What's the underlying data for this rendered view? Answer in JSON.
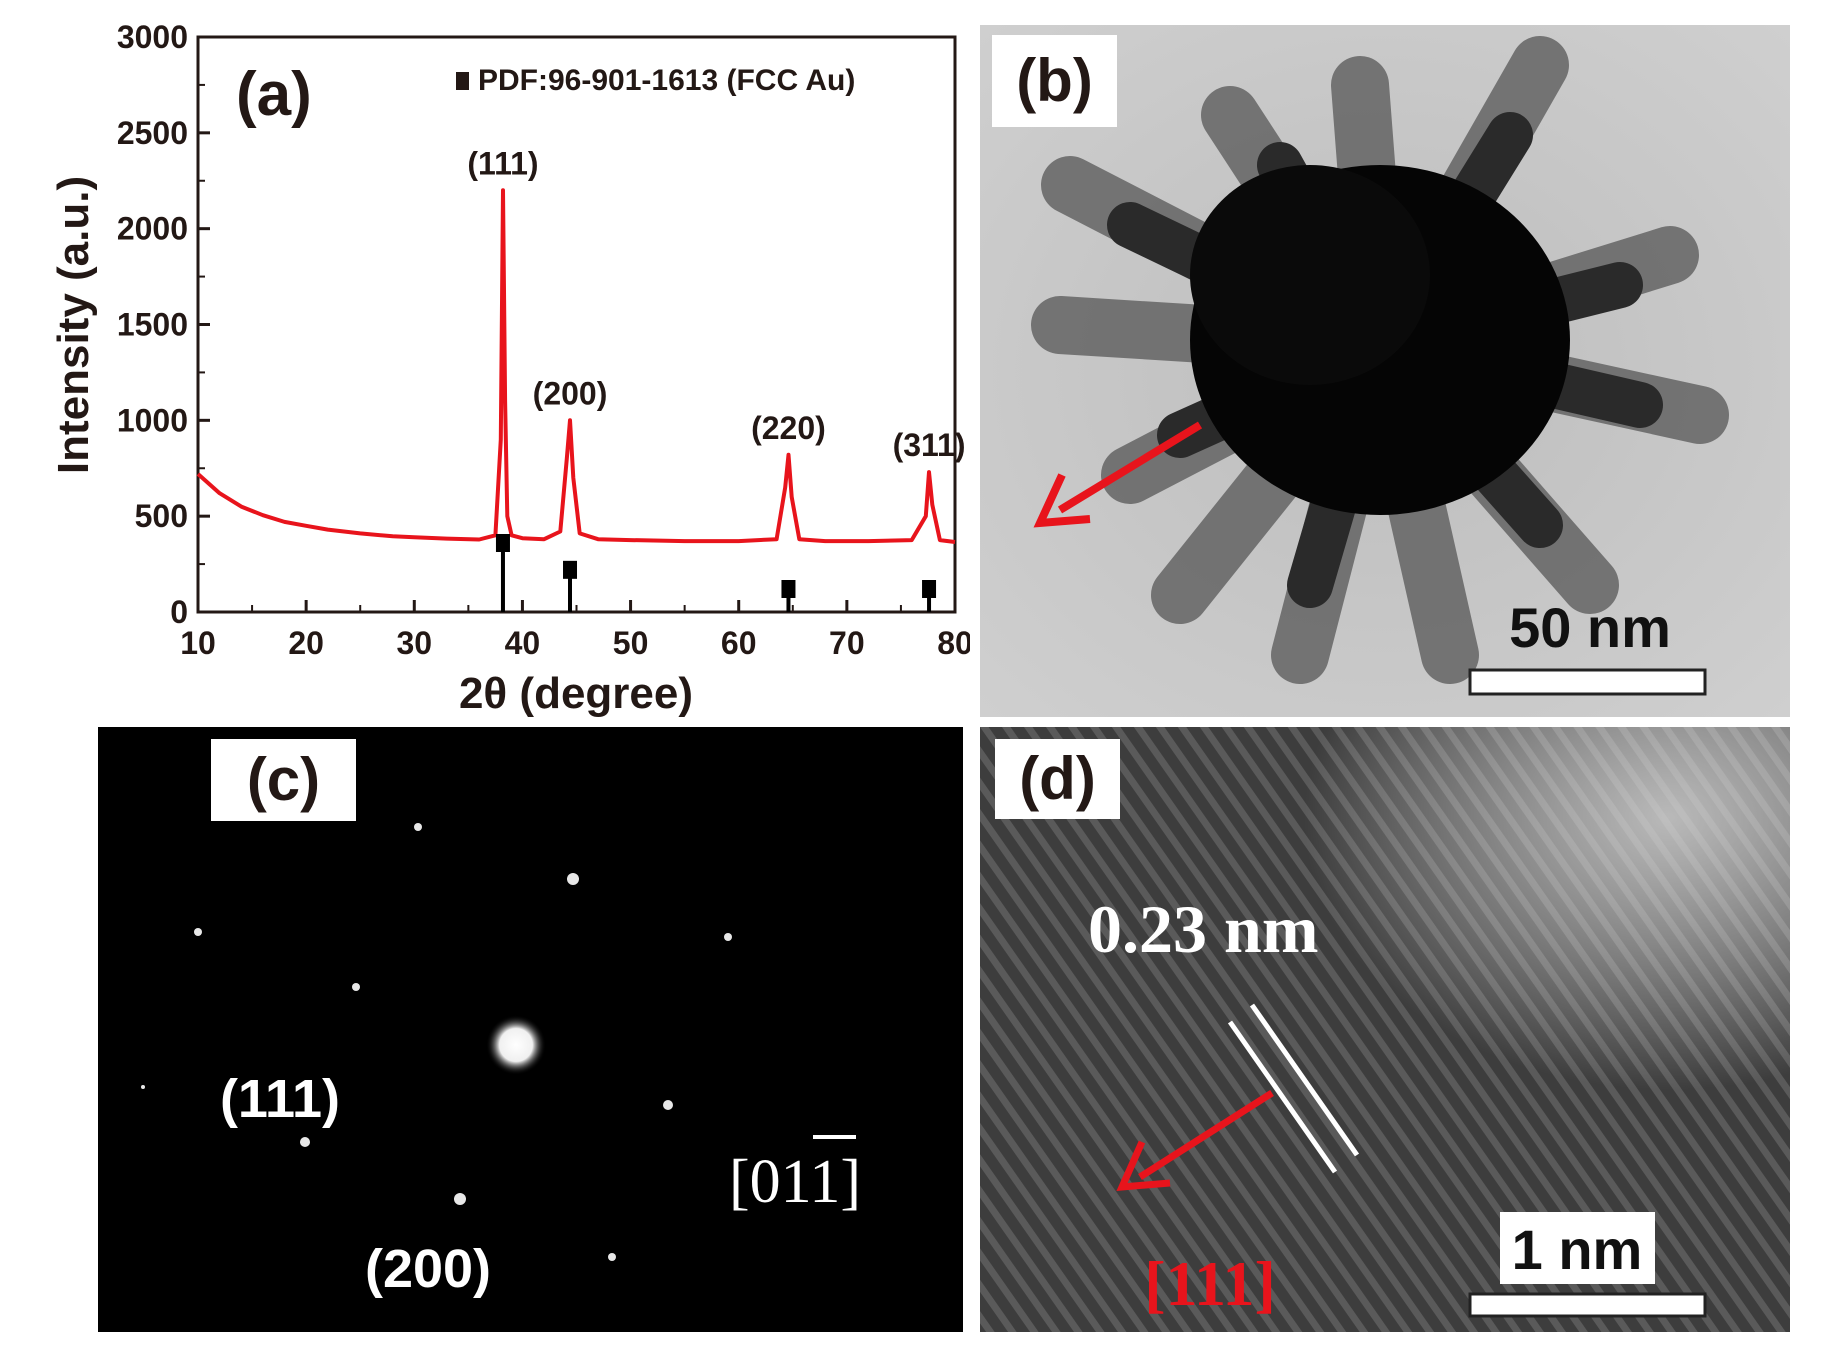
{
  "panels": {
    "a": {
      "label": "(a)"
    },
    "b": {
      "label": "(b)",
      "scale_bar": "50 nm"
    },
    "c": {
      "label": "(c)",
      "zone_axis": "[011]",
      "spot_labels": [
        "(111)",
        "(200)"
      ]
    },
    "d": {
      "label": "(d)",
      "spacing": "0.23 nm",
      "direction": "[111]",
      "scale_bar": "1 nm"
    }
  },
  "chart_data": {
    "type": "line",
    "xlabel": "2θ (degree)",
    "ylabel": "Intensity (a.u.)",
    "xlim": [
      10,
      80
    ],
    "ylim": [
      0,
      3000
    ],
    "xticks": [
      10,
      20,
      30,
      40,
      50,
      60,
      70,
      80
    ],
    "yticks": [
      0,
      500,
      1000,
      1500,
      2000,
      2500,
      3000
    ],
    "legend": "PDF:96-901-1613 (FCC Au)",
    "legend_position": "top-right",
    "series": [
      {
        "color": "#e8141c",
        "x": [
          10,
          12,
          14,
          16,
          18,
          20,
          22,
          25,
          28,
          30,
          33,
          36,
          37.5,
          38.0,
          38.2,
          38.4,
          38.6,
          39.0,
          40,
          42,
          43.5,
          44.1,
          44.4,
          44.7,
          45.3,
          47,
          50,
          55,
          60,
          63.5,
          64.3,
          64.6,
          64.9,
          65.6,
          68,
          72,
          76,
          77.3,
          77.6,
          77.9,
          78.6,
          80
        ],
        "y": [
          720,
          620,
          550,
          505,
          470,
          450,
          430,
          410,
          395,
          390,
          383,
          378,
          400,
          900,
          2200,
          1100,
          500,
          400,
          385,
          380,
          420,
          800,
          1000,
          700,
          410,
          380,
          375,
          370,
          370,
          380,
          650,
          820,
          600,
          380,
          370,
          370,
          375,
          500,
          730,
          560,
          375,
          365
        ]
      }
    ],
    "reference_peaks": {
      "color": "#000000",
      "x": [
        38.2,
        44.4,
        64.6,
        77.6
      ],
      "y": [
        360,
        220,
        120,
        120
      ]
    },
    "peak_labels": [
      {
        "text": "(111)",
        "x": 38.2,
        "y": 2200
      },
      {
        "text": "(200)",
        "x": 44.4,
        "y": 1000
      },
      {
        "text": "(220)",
        "x": 64.6,
        "y": 820
      },
      {
        "text": "(311)",
        "x": 77.6,
        "y": 730
      }
    ]
  }
}
